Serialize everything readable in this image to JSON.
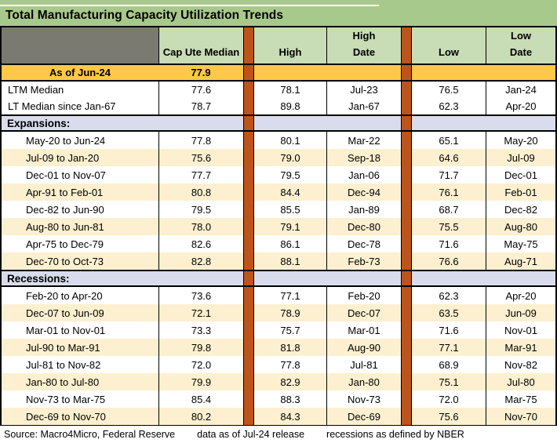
{
  "chart_data": {
    "type": "table",
    "title": "Total Manufacturing Capacity Utilization Trends",
    "columns": [
      "",
      "Cap Ute Median",
      "High",
      "High Date",
      "Low",
      "Low Date"
    ],
    "header": {
      "capute": "Cap Ute Median",
      "high": "High",
      "high_date": [
        "High",
        "Date"
      ],
      "low": "Low",
      "low_date": [
        "Low",
        "Date"
      ]
    },
    "rows": [
      {
        "kind": "highlight",
        "label": "As of Jun-24",
        "values": [
          "77.9",
          "",
          "",
          "",
          ""
        ]
      },
      {
        "kind": "summary",
        "label": "LTM Median",
        "values": [
          "77.6",
          "78.1",
          "Jul-23",
          "76.5",
          "Jan-24"
        ]
      },
      {
        "kind": "summary",
        "label": "LT Median since Jan-67",
        "values": [
          "78.7",
          "89.8",
          "Jan-67",
          "62.3",
          "Apr-20"
        ]
      },
      {
        "kind": "section",
        "label": "Expansions:",
        "values": [
          "",
          "",
          "",
          "",
          ""
        ]
      },
      {
        "kind": "data",
        "label": "May-20 to Jun-24",
        "values": [
          "77.8",
          "80.1",
          "Mar-22",
          "65.1",
          "May-20"
        ]
      },
      {
        "kind": "data",
        "label": "Jul-09 to Jan-20",
        "values": [
          "75.6",
          "79.0",
          "Sep-18",
          "64.6",
          "Jul-09"
        ]
      },
      {
        "kind": "data",
        "label": "Dec-01 to Nov-07",
        "values": [
          "77.7",
          "79.5",
          "Jan-06",
          "71.7",
          "Dec-01"
        ]
      },
      {
        "kind": "data",
        "label": "Apr-91 to Feb-01",
        "values": [
          "80.8",
          "84.4",
          "Dec-94",
          "76.1",
          "Feb-01"
        ]
      },
      {
        "kind": "data",
        "label": "Dec-82 to Jun-90",
        "values": [
          "79.5",
          "85.5",
          "Jan-89",
          "68.7",
          "Dec-82"
        ]
      },
      {
        "kind": "data",
        "label": "Aug-80 to Jun-81",
        "values": [
          "78.0",
          "79.1",
          "Dec-80",
          "75.5",
          "Aug-80"
        ]
      },
      {
        "kind": "data",
        "label": "Apr-75 to Dec-79",
        "values": [
          "82.6",
          "86.1",
          "Dec-78",
          "71.6",
          "May-75"
        ]
      },
      {
        "kind": "data",
        "label": "Dec-70 to Oct-73",
        "values": [
          "82.8",
          "88.1",
          "Feb-73",
          "76.6",
          "Aug-71"
        ]
      },
      {
        "kind": "section",
        "label": "Recessions:",
        "values": [
          "",
          "",
          "",
          "",
          ""
        ]
      },
      {
        "kind": "data",
        "label": "Feb-20 to Apr-20",
        "values": [
          "73.6",
          "77.1",
          "Feb-20",
          "62.3",
          "Apr-20"
        ]
      },
      {
        "kind": "data",
        "label": "Dec-07 to Jun-09",
        "values": [
          "72.1",
          "78.9",
          "Dec-07",
          "63.5",
          "Jun-09"
        ]
      },
      {
        "kind": "data",
        "label": "Mar-01 to Nov-01",
        "values": [
          "73.3",
          "75.7",
          "Mar-01",
          "71.6",
          "Nov-01"
        ]
      },
      {
        "kind": "data",
        "label": "Jul-90 to Mar-91",
        "values": [
          "79.8",
          "81.8",
          "Aug-90",
          "77.1",
          "Mar-91"
        ]
      },
      {
        "kind": "data",
        "label": "Jul-81 to Nov-82",
        "values": [
          "72.0",
          "77.8",
          "Jul-81",
          "68.9",
          "Nov-82"
        ]
      },
      {
        "kind": "data",
        "label": "Jan-80 to Jul-80",
        "values": [
          "79.9",
          "82.9",
          "Jan-80",
          "75.1",
          "Jul-80"
        ]
      },
      {
        "kind": "data",
        "label": "Nov-73 to Mar-75",
        "values": [
          "85.4",
          "88.3",
          "Nov-73",
          "72.0",
          "Mar-75"
        ]
      },
      {
        "kind": "data",
        "label": "Dec-69 to Nov-70",
        "values": [
          "80.2",
          "84.3",
          "Dec-69",
          "75.6",
          "Nov-70"
        ]
      }
    ]
  },
  "footer": {
    "source": "Source: Macro4Micro, Federal Reserve",
    "as_of": "data as of Jul-24 release",
    "note": "recessions as defined by NBER"
  },
  "colors": {
    "title_green": "#A8C98C",
    "header_green": "#C8DCB6",
    "header_gray": "#7B7A71",
    "separator_orange": "#BC541C",
    "highlight_gold": "#FFC848",
    "row_cream": "#FDF0D0",
    "section_lavender": "#D9DCEC",
    "row_white": "#FFFFFF",
    "border_black": "#000000"
  }
}
